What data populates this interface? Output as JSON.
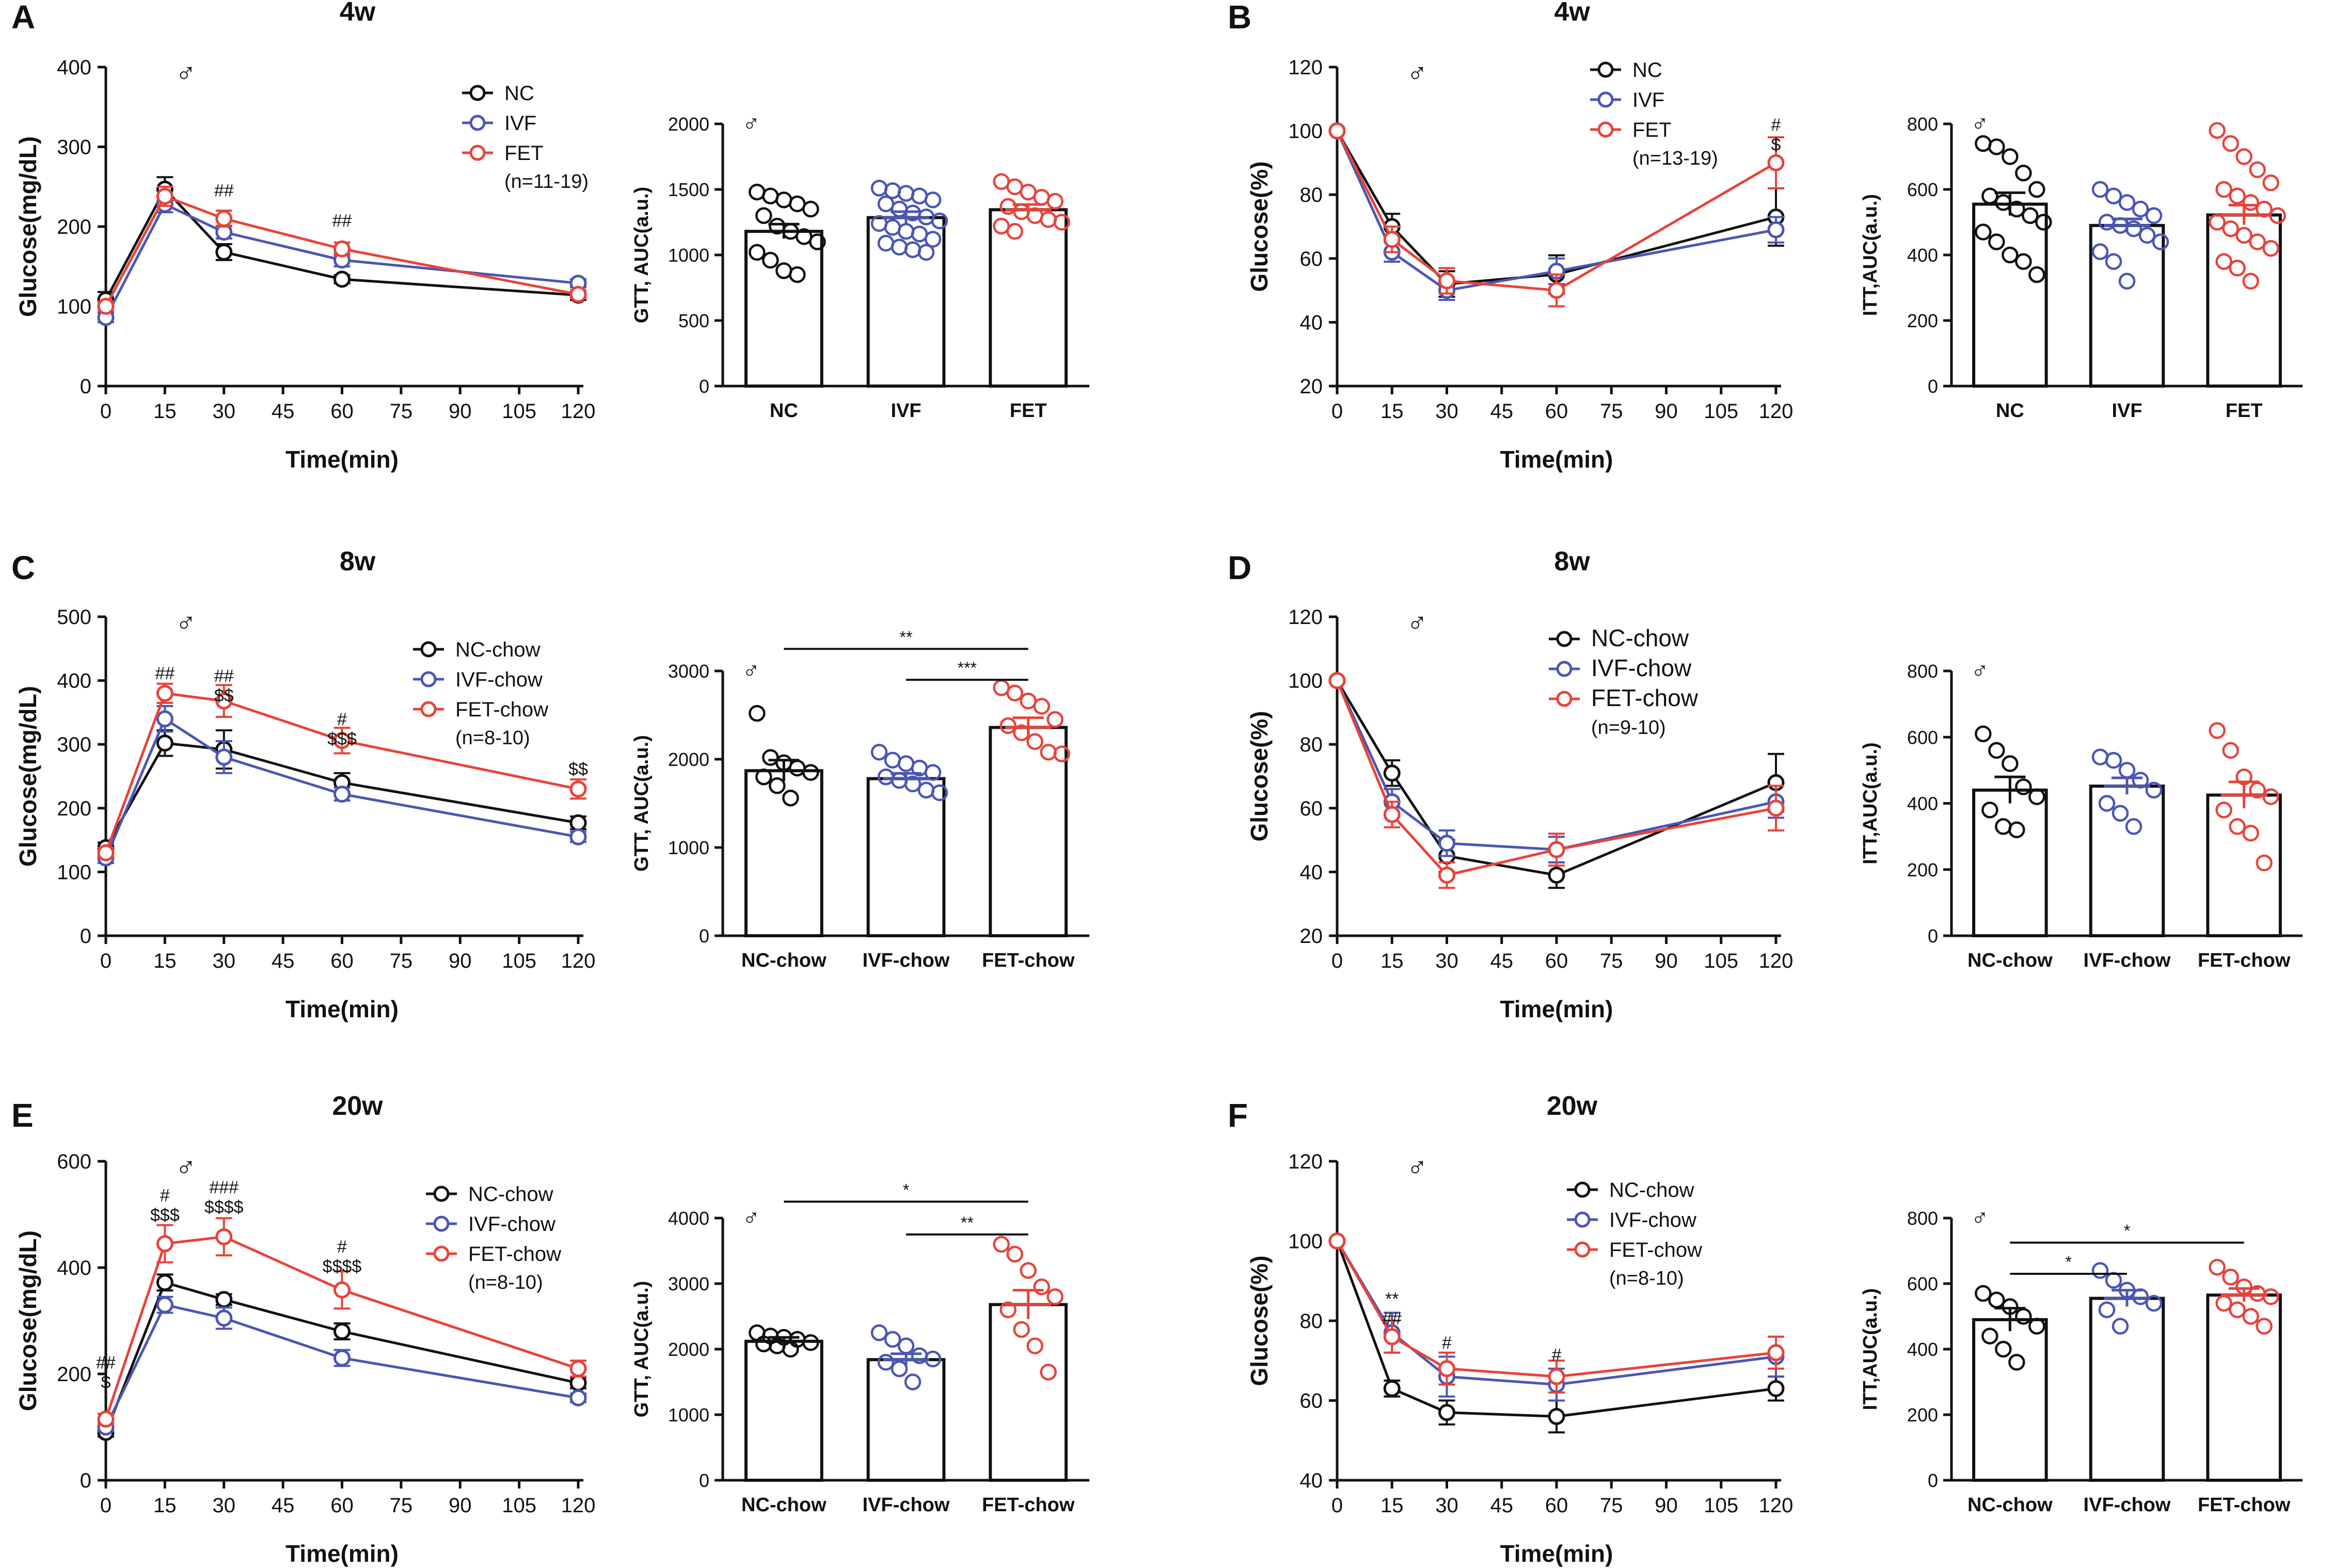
{
  "colors": {
    "NC": "#111111",
    "IVF": "#4a56b4",
    "FET": "#e8433a",
    "axis": "#111111"
  },
  "male_symbol": "♂",
  "chart_data": [
    {
      "panel": "A",
      "type": "line",
      "title": "4w",
      "xlabel": "Time(min)",
      "ylabel": "Glucose(mg/dL)",
      "xlim": [
        0,
        120
      ],
      "xticks": [
        0,
        15,
        30,
        45,
        60,
        75,
        90,
        105,
        120
      ],
      "ylim": [
        0,
        400
      ],
      "yticks": [
        0,
        100,
        200,
        300,
        400
      ],
      "x": [
        0,
        15,
        30,
        60,
        120
      ],
      "series": [
        {
          "name": "NC",
          "key": "NC",
          "values": [
            108,
            247,
            168,
            134,
            114
          ],
          "err": [
            10,
            15,
            10,
            5,
            6
          ]
        },
        {
          "name": "IVF",
          "key": "IVF",
          "values": [
            86,
            228,
            193,
            158,
            129
          ],
          "err": [
            6,
            10,
            8,
            8,
            5
          ]
        },
        {
          "name": "FET",
          "key": "FET",
          "values": [
            100,
            238,
            210,
            172,
            115
          ],
          "err": [
            6,
            12,
            10,
            8,
            5
          ]
        }
      ],
      "legend_n": "(n=11-19)",
      "annotations": [
        {
          "x": 30,
          "y": 238,
          "lines": [
            "##"
          ]
        },
        {
          "x": 60,
          "y": 200,
          "lines": [
            "##"
          ]
        }
      ]
    },
    {
      "panel": "A",
      "type": "bar",
      "ylabel": "GTT, AUC(a.u.)",
      "categories": [
        "NC",
        "IVF",
        "FET"
      ],
      "ylim": [
        0,
        2000
      ],
      "yticks": [
        0,
        500,
        1000,
        1500,
        2000
      ],
      "values": [
        1180,
        1285,
        1345
      ],
      "sem": [
        55,
        45,
        40
      ],
      "points": [
        [
          1480,
          1450,
          1420,
          1390,
          1350,
          1300,
          1220,
          1180,
          1140,
          1100,
          1020,
          960,
          880,
          850
        ],
        [
          1510,
          1490,
          1470,
          1450,
          1420,
          1390,
          1350,
          1320,
          1290,
          1260,
          1240,
          1210,
          1180,
          1160,
          1120,
          1090,
          1060,
          1040,
          1020
        ],
        [
          1560,
          1520,
          1480,
          1440,
          1410,
          1370,
          1330,
          1300,
          1270,
          1250,
          1220,
          1180
        ]
      ],
      "significance": []
    },
    {
      "panel": "B",
      "type": "line",
      "title": "4w",
      "xlabel": "Time(min)",
      "ylabel": "Glucose(%)",
      "xlim": [
        0,
        120
      ],
      "xticks": [
        0,
        15,
        30,
        45,
        60,
        75,
        90,
        105,
        120
      ],
      "ylim": [
        20,
        120
      ],
      "yticks": [
        20,
        40,
        60,
        80,
        100,
        120
      ],
      "x": [
        0,
        15,
        30,
        60,
        120
      ],
      "series": [
        {
          "name": "NC",
          "key": "NC",
          "values": [
            100,
            70,
            52,
            55,
            73
          ],
          "err": [
            0,
            4,
            4,
            6,
            9
          ]
        },
        {
          "name": "IVF",
          "key": "IVF",
          "values": [
            100,
            62,
            50,
            56,
            69
          ],
          "err": [
            0,
            3,
            3,
            4,
            4
          ]
        },
        {
          "name": "FET",
          "key": "FET",
          "values": [
            100,
            66,
            53,
            50,
            90
          ],
          "err": [
            0,
            4,
            4,
            5,
            8
          ]
        }
      ],
      "legend_n": "(n=13-19)",
      "annotations": [
        {
          "x": 120,
          "y": 100,
          "lines": [
            "#",
            "$"
          ]
        }
      ]
    },
    {
      "panel": "B",
      "type": "bar",
      "ylabel": "ITT,AUC(a.u.)",
      "categories": [
        "NC",
        "IVF",
        "FET"
      ],
      "ylim": [
        0,
        800
      ],
      "yticks": [
        0,
        200,
        400,
        600,
        800
      ],
      "values": [
        555,
        490,
        522
      ],
      "sem": [
        35,
        20,
        30
      ],
      "points": [
        [
          740,
          730,
          700,
          650,
          600,
          580,
          560,
          540,
          520,
          500,
          470,
          440,
          400,
          380,
          340
        ],
        [
          600,
          580,
          560,
          540,
          520,
          500,
          490,
          480,
          460,
          440,
          410,
          380,
          320
        ],
        [
          780,
          740,
          700,
          660,
          620,
          600,
          580,
          560,
          540,
          520,
          500,
          480,
          460,
          440,
          420,
          380,
          360,
          320
        ]
      ],
      "significance": []
    },
    {
      "panel": "C",
      "type": "line",
      "title": "8w",
      "xlabel": "Time(min)",
      "ylabel": "Glucose(mg/dL)",
      "xlim": [
        0,
        120
      ],
      "xticks": [
        0,
        15,
        30,
        45,
        60,
        75,
        90,
        105,
        120
      ],
      "ylim": [
        0,
        500
      ],
      "yticks": [
        0,
        100,
        200,
        300,
        400,
        500
      ],
      "x": [
        0,
        15,
        30,
        60,
        120
      ],
      "series": [
        {
          "name": "NC-chow",
          "key": "NC",
          "values": [
            138,
            302,
            292,
            240,
            177
          ],
          "err": [
            8,
            20,
            30,
            15,
            10
          ]
        },
        {
          "name": "IVF-chow",
          "key": "IVF",
          "values": [
            122,
            340,
            280,
            222,
            155
          ],
          "err": [
            8,
            20,
            25,
            10,
            8
          ]
        },
        {
          "name": "FET-chow",
          "key": "FET",
          "values": [
            130,
            380,
            368,
            306,
            230
          ],
          "err": [
            8,
            15,
            25,
            20,
            15
          ]
        }
      ],
      "legend_n": "(n=8-10)",
      "annotations": [
        {
          "x": 15,
          "y": 402,
          "lines": [
            "##"
          ]
        },
        {
          "x": 30,
          "y": 398,
          "lines": [
            "##",
            "$$"
          ]
        },
        {
          "x": 60,
          "y": 330,
          "lines": [
            "#",
            "$$$"
          ]
        },
        {
          "x": 120,
          "y": 252,
          "lines": [
            "$$"
          ]
        }
      ]
    },
    {
      "panel": "C",
      "type": "bar",
      "ylabel": "GTT, AUC(a.u.)",
      "categories": [
        "NC-chow",
        "IVF-chow",
        "FET-chow"
      ],
      "ylim": [
        0,
        3000
      ],
      "yticks": [
        0,
        1000,
        2000,
        3000
      ],
      "values": [
        1870,
        1780,
        2360
      ],
      "sem": [
        120,
        60,
        110
      ],
      "points": [
        [
          2520,
          2020,
          1960,
          1900,
          1850,
          1800,
          1700,
          1560
        ],
        [
          2080,
          1990,
          1950,
          1900,
          1850,
          1800,
          1760,
          1720,
          1650,
          1620
        ],
        [
          2810,
          2750,
          2660,
          2600,
          2450,
          2380,
          2300,
          2200,
          2080,
          2060
        ]
      ],
      "significance": [
        {
          "from": 0,
          "to": 2,
          "label": "**",
          "y": 3250
        },
        {
          "from": 1,
          "to": 2,
          "label": "***",
          "y": 2900
        }
      ]
    },
    {
      "panel": "D",
      "type": "line",
      "title": "8w",
      "xlabel": "Time(min)",
      "ylabel": "Glucose(%)",
      "xlim": [
        0,
        120
      ],
      "xticks": [
        0,
        15,
        30,
        45,
        60,
        75,
        90,
        105,
        120
      ],
      "ylim": [
        20,
        120
      ],
      "yticks": [
        20,
        40,
        60,
        80,
        100,
        120
      ],
      "x": [
        0,
        15,
        30,
        60,
        120
      ],
      "series": [
        {
          "name": "NC-chow",
          "key": "NC",
          "values": [
            100,
            71,
            45,
            39,
            68
          ],
          "err": [
            0,
            4,
            5,
            4,
            9
          ]
        },
        {
          "name": "IVF-chow",
          "key": "IVF",
          "values": [
            100,
            62,
            49,
            47,
            62
          ],
          "err": [
            0,
            4,
            4,
            4,
            5
          ]
        },
        {
          "name": "FET-chow",
          "key": "FET",
          "values": [
            100,
            58,
            39,
            47,
            60
          ],
          "err": [
            0,
            4,
            4,
            5,
            7
          ]
        }
      ],
      "legend_n": "(n=9-10)",
      "annotations": []
    },
    {
      "panel": "D",
      "type": "bar",
      "ylabel": "ITT,AUC(a.u.)",
      "categories": [
        "NC-chow",
        "IVF-chow",
        "FET-chow"
      ],
      "ylim": [
        0,
        800
      ],
      "yticks": [
        0,
        200,
        400,
        600,
        800
      ],
      "values": [
        440,
        452,
        425
      ],
      "sem": [
        40,
        25,
        40
      ],
      "points": [
        [
          610,
          560,
          520,
          450,
          420,
          380,
          330,
          320
        ],
        [
          540,
          530,
          500,
          470,
          440,
          400,
          370,
          330
        ],
        [
          620,
          560,
          480,
          440,
          420,
          380,
          330,
          310,
          220
        ]
      ],
      "significance": []
    },
    {
      "panel": "E",
      "type": "line",
      "title": "20w",
      "xlabel": "Time(min)",
      "ylabel": "Glucose(mg/dL)",
      "xlim": [
        0,
        120
      ],
      "xticks": [
        0,
        15,
        30,
        45,
        60,
        75,
        90,
        105,
        120
      ],
      "ylim": [
        0,
        600
      ],
      "yticks": [
        0,
        200,
        400,
        600
      ],
      "x": [
        0,
        15,
        30,
        60,
        120
      ],
      "series": [
        {
          "name": "NC-chow",
          "key": "NC",
          "values": [
            90,
            372,
            340,
            280,
            183
          ],
          "err": [
            8,
            15,
            10,
            15,
            10
          ]
        },
        {
          "name": "IVF-chow",
          "key": "IVF",
          "values": [
            100,
            330,
            305,
            230,
            155
          ],
          "err": [
            8,
            15,
            20,
            15,
            8
          ]
        },
        {
          "name": "FET-chow",
          "key": "FET",
          "values": [
            115,
            445,
            458,
            358,
            210
          ],
          "err": [
            10,
            35,
            35,
            35,
            15
          ]
        }
      ],
      "legend_n": "(n=8-10)",
      "annotations": [
        {
          "x": 0,
          "y": 210,
          "lines": [
            "##",
            "$"
          ]
        },
        {
          "x": 15,
          "y": 525,
          "lines": [
            "#",
            "$$$"
          ]
        },
        {
          "x": 30,
          "y": 540,
          "lines": [
            "###",
            "$$$$"
          ]
        },
        {
          "x": 60,
          "y": 428,
          "lines": [
            "#",
            "$$$$"
          ]
        }
      ]
    },
    {
      "panel": "E",
      "type": "bar",
      "ylabel": "GTT, AUC(a.u.)",
      "categories": [
        "NC-chow",
        "IVF-chow",
        "FET-chow"
      ],
      "ylim": [
        0,
        4000
      ],
      "yticks": [
        0,
        1000,
        2000,
        3000,
        4000
      ],
      "values": [
        2120,
        1840,
        2680
      ],
      "sem": [
        60,
        90,
        220
      ],
      "points": [
        [
          2250,
          2200,
          2180,
          2150,
          2100,
          2080,
          2050,
          2000
        ],
        [
          2250,
          2150,
          2050,
          1900,
          1850,
          1800,
          1700,
          1500
        ],
        [
          3600,
          3450,
          3200,
          2950,
          2800,
          2600,
          2300,
          2050,
          1650
        ]
      ],
      "significance": [
        {
          "from": 0,
          "to": 2,
          "label": "*",
          "y": 4250
        },
        {
          "from": 1,
          "to": 2,
          "label": "**",
          "y": 3750
        }
      ]
    },
    {
      "panel": "F",
      "type": "line",
      "title": "20w",
      "xlabel": "Time(min)",
      "ylabel": "Glucose(%)",
      "xlim": [
        0,
        120
      ],
      "xticks": [
        0,
        15,
        30,
        45,
        60,
        75,
        90,
        105,
        120
      ],
      "ylim": [
        40,
        120
      ],
      "yticks": [
        40,
        60,
        80,
        100,
        120
      ],
      "x": [
        0,
        15,
        30,
        60,
        120
      ],
      "series": [
        {
          "name": "NC-chow",
          "key": "NC",
          "values": [
            100,
            63,
            57,
            56,
            63
          ],
          "err": [
            0,
            2,
            3,
            4,
            3
          ]
        },
        {
          "name": "IVF-chow",
          "key": "IVF",
          "values": [
            100,
            77,
            66,
            64,
            71
          ],
          "err": [
            0,
            5,
            5,
            4,
            5
          ]
        },
        {
          "name": "FET-chow",
          "key": "FET",
          "values": [
            100,
            76,
            68,
            66,
            72
          ],
          "err": [
            0,
            4,
            4,
            4,
            4
          ]
        }
      ],
      "legend_n": "(n=8-10)",
      "annotations": [
        {
          "x": 15,
          "y": 84,
          "lines": [
            "**",
            "##"
          ]
        },
        {
          "x": 30,
          "y": 73,
          "lines": [
            "#"
          ]
        },
        {
          "x": 60,
          "y": 70,
          "lines": [
            "#"
          ]
        }
      ]
    },
    {
      "panel": "F",
      "type": "bar",
      "ylabel": "ITT,AUC(a.u.)",
      "categories": [
        "NC-chow",
        "IVF-chow",
        "FET-chow"
      ],
      "ylim": [
        0,
        800
      ],
      "yticks": [
        0,
        200,
        400,
        600,
        800
      ],
      "values": [
        490,
        555,
        565
      ],
      "sem": [
        35,
        25,
        20
      ],
      "points": [
        [
          570,
          550,
          530,
          500,
          470,
          440,
          400,
          360
        ],
        [
          640,
          610,
          580,
          560,
          540,
          520,
          470
        ],
        [
          650,
          620,
          590,
          570,
          560,
          540,
          520,
          500,
          470
        ]
      ],
      "significance": [
        {
          "from": 0,
          "to": 2,
          "label": "*",
          "y": 725
        },
        {
          "from": 0,
          "to": 1,
          "label": "*",
          "y": 630
        }
      ]
    }
  ]
}
